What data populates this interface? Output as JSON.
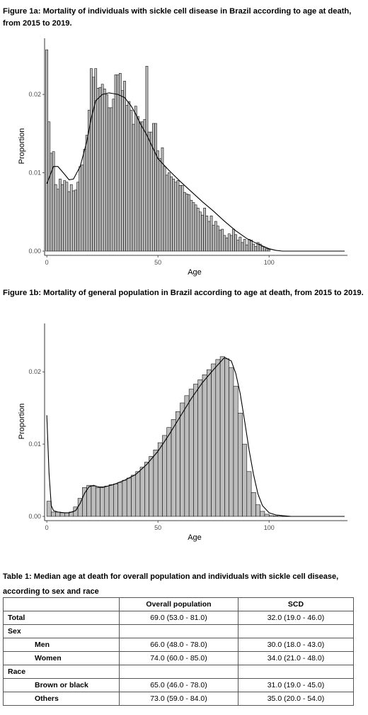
{
  "figure_1a": {
    "title": "Figure 1a: Mortality of individuals with sickle cell disease in Brazil according to age at death, from 2015 to 2019."
  },
  "figure_1b": {
    "title": "Figure 1b: Mortality of general population in Brazil according to age at death, from 2015 to 2019."
  },
  "table": {
    "title": "Table 1: Median age at death for overall population and individuals with sickle cell disease, according to sex and race",
    "headers": [
      "",
      "Overall population",
      "SCD"
    ],
    "rows": [
      {
        "label": "Total",
        "overall": "69.0 (53.0 - 81.0)",
        "scd": "32.0 (19.0 - 46.0)"
      },
      {
        "label": "Sex",
        "overall": "",
        "scd": ""
      },
      {
        "label": "Men",
        "overall": "66.0 (48.0 - 78.0)",
        "scd": "30.0 (18.0 - 43.0)"
      },
      {
        "label": "Women",
        "overall": "74.0 (60.0 - 85.0)",
        "scd": "34.0 (21.0 - 48.0)"
      },
      {
        "label": "Race",
        "overall": "",
        "scd": ""
      },
      {
        "label": "Brown or black",
        "overall": "65.0 (46.0 - 78.0)",
        "scd": "31.0 (19.0 - 45.0)"
      },
      {
        "label": "Others",
        "overall": "73.0 (59.0 - 84.0)",
        "scd": "35.0 (20.0 - 54.0)"
      }
    ]
  },
  "chart_data": [
    {
      "type": "bar",
      "xlabel": "Age",
      "ylabel": "Proportion",
      "xlim": [
        -1,
        134
      ],
      "ylim": [
        0,
        0.0268
      ],
      "xticks": [
        0,
        50,
        100
      ],
      "xtick_labels": [
        "0",
        "50",
        "100"
      ],
      "yticks": [
        0,
        0.01,
        0.02
      ],
      "ytick_labels": [
        "0.00",
        "0.01",
        "0.02"
      ],
      "grid": false,
      "bars": {
        "x": [
          0,
          1,
          2,
          3,
          4,
          5,
          6,
          7,
          8,
          9,
          10,
          11,
          12,
          13,
          14,
          15,
          16,
          17,
          18,
          19,
          20,
          21,
          22,
          23,
          24,
          25,
          26,
          27,
          28,
          29,
          30,
          31,
          32,
          33,
          34,
          35,
          36,
          37,
          38,
          39,
          40,
          41,
          42,
          43,
          44,
          45,
          46,
          47,
          48,
          49,
          50,
          51,
          52,
          53,
          54,
          55,
          56,
          57,
          58,
          59,
          60,
          61,
          62,
          63,
          64,
          65,
          66,
          67,
          68,
          69,
          70,
          71,
          72,
          73,
          74,
          75,
          76,
          77,
          78,
          79,
          80,
          81,
          82,
          83,
          84,
          85,
          86,
          87,
          88,
          89,
          90,
          91,
          92,
          93,
          94,
          95,
          96,
          97,
          98,
          99,
          100
        ],
        "values": [
          0.0257,
          0.0165,
          0.0125,
          0.0127,
          0.0085,
          0.0079,
          0.0092,
          0.0085,
          0.009,
          0.0088,
          0.0076,
          0.0085,
          0.0077,
          0.0078,
          0.0088,
          0.0108,
          0.011,
          0.013,
          0.0148,
          0.018,
          0.0233,
          0.0222,
          0.0233,
          0.0208,
          0.0209,
          0.0213,
          0.0207,
          0.02,
          0.0183,
          0.0183,
          0.0194,
          0.0225,
          0.0225,
          0.0227,
          0.0205,
          0.0217,
          0.0186,
          0.0191,
          0.018,
          0.0162,
          0.0185,
          0.0172,
          0.0165,
          0.0165,
          0.0168,
          0.0236,
          0.0152,
          0.0152,
          0.0163,
          0.0163,
          0.0128,
          0.0118,
          0.0132,
          0.0108,
          0.0097,
          0.01,
          0.0095,
          0.0092,
          0.0088,
          0.009,
          0.0084,
          0.0084,
          0.0075,
          0.0073,
          0.0072,
          0.0065,
          0.0062,
          0.0059,
          0.0055,
          0.005,
          0.0046,
          0.0055,
          0.0045,
          0.0038,
          0.0045,
          0.0033,
          0.0038,
          0.0032,
          0.0027,
          0.0028,
          0.002,
          0.0017,
          0.0022,
          0.002,
          0.0028,
          0.0021,
          0.0014,
          0.0018,
          0.0011,
          0.0015,
          0.0008,
          0.0015,
          0.0014,
          0.0009,
          0.0006,
          0.0011,
          0.0009,
          0.0006,
          0.0005,
          0.0003,
          0.0002
        ]
      },
      "density": {
        "x": [
          0,
          3,
          5,
          8,
          10,
          12,
          15,
          18,
          20,
          22,
          25,
          28,
          30,
          32,
          35,
          38,
          40,
          42,
          45,
          48,
          50,
          55,
          60,
          65,
          70,
          75,
          80,
          85,
          90,
          95,
          100,
          103,
          106,
          110,
          120,
          134
        ],
        "values": [
          0.0086,
          0.0108,
          0.0108,
          0.0098,
          0.0091,
          0.0092,
          0.0108,
          0.014,
          0.017,
          0.0192,
          0.02,
          0.0202,
          0.0201,
          0.02,
          0.0196,
          0.0185,
          0.0175,
          0.0163,
          0.0148,
          0.013,
          0.0118,
          0.0103,
          0.0089,
          0.0076,
          0.0063,
          0.0051,
          0.0038,
          0.0026,
          0.0016,
          0.0009,
          0.0003,
          0.0001,
          0,
          0,
          0,
          0
        ]
      }
    },
    {
      "type": "bar",
      "xlabel": "Age",
      "ylabel": "Proportion",
      "xlim": [
        -1,
        134
      ],
      "ylim": [
        0,
        0.0263
      ],
      "xticks": [
        0,
        50,
        100
      ],
      "xtick_labels": [
        "0",
        "50",
        "100"
      ],
      "yticks": [
        0,
        0.01,
        0.02
      ],
      "ytick_labels": [
        "0.00",
        "0.01",
        "0.02"
      ],
      "grid": false,
      "bars": {
        "x": [
          1,
          3,
          5,
          7,
          9,
          11,
          13,
          15,
          17,
          19,
          21,
          23,
          25,
          27,
          29,
          31,
          33,
          35,
          37,
          39,
          41,
          43,
          45,
          47,
          49,
          51,
          53,
          55,
          57,
          59,
          61,
          63,
          65,
          67,
          69,
          71,
          73,
          75,
          77,
          79,
          81,
          83,
          85,
          87,
          89,
          91,
          93,
          95,
          97,
          99,
          101,
          103,
          105,
          107,
          109
        ],
        "values": [
          0.0021,
          0.0006,
          0.0006,
          0.0005,
          0.0005,
          0.0006,
          0.0013,
          0.0025,
          0.004,
          0.0043,
          0.0042,
          0.004,
          0.0041,
          0.0042,
          0.0044,
          0.0045,
          0.0047,
          0.005,
          0.0053,
          0.0057,
          0.0062,
          0.0068,
          0.0075,
          0.0083,
          0.0092,
          0.0102,
          0.0112,
          0.0123,
          0.0134,
          0.0145,
          0.0157,
          0.0167,
          0.0176,
          0.0183,
          0.0189,
          0.0196,
          0.0203,
          0.0211,
          0.0217,
          0.0221,
          0.0218,
          0.0206,
          0.018,
          0.0143,
          0.01,
          0.0062,
          0.0033,
          0.0016,
          0.0007,
          0.0003,
          0.0001,
          5e-05,
          2e-05,
          1e-05,
          1e-05
        ]
      },
      "density": {
        "x": [
          0,
          1,
          2,
          3,
          5,
          8,
          10,
          13,
          15,
          17,
          19,
          21,
          23,
          25,
          30,
          35,
          40,
          45,
          50,
          55,
          60,
          65,
          70,
          75,
          80,
          83,
          85,
          87,
          89,
          91,
          93,
          95,
          97,
          100,
          103,
          106,
          110,
          120,
          134
        ],
        "values": [
          0.014,
          0.006,
          0.0015,
          0.0008,
          0.0006,
          0.0005,
          0.0005,
          0.0008,
          0.0018,
          0.0032,
          0.0041,
          0.0043,
          0.0041,
          0.004,
          0.0044,
          0.005,
          0.0058,
          0.0072,
          0.009,
          0.0113,
          0.0138,
          0.0163,
          0.0185,
          0.0203,
          0.022,
          0.0215,
          0.0198,
          0.017,
          0.0132,
          0.0092,
          0.0058,
          0.0031,
          0.0015,
          0.0005,
          0.0002,
          0.0001,
          0,
          0,
          0
        ]
      }
    }
  ]
}
